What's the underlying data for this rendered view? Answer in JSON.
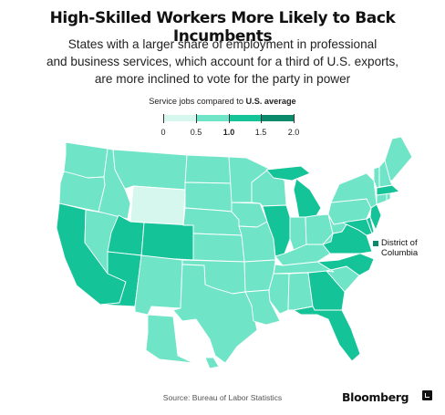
{
  "title": "High-Skilled Workers More Likely to Back Incumbents",
  "subtitle": {
    "line1": "States with a larger share of employment in professional",
    "line2": "and business services, which account for a third of U.S. exports,",
    "line3": "are more inclined to vote for the party in power"
  },
  "legend": {
    "title_prefix": "Service jobs compared to ",
    "title_bold": "U.S. average",
    "ticks": [
      "0",
      "0.5",
      "1.0",
      "1.5",
      "2.0"
    ],
    "bins": [
      {
        "from": 0,
        "to": 0.5,
        "color": "#d6f7ee"
      },
      {
        "from": 0.5,
        "to": 1.0,
        "color": "#6fe4c7"
      },
      {
        "from": 1.0,
        "to": 1.5,
        "color": "#15c398"
      },
      {
        "from": 1.5,
        "to": 2.0,
        "color": "#0a8a6a"
      }
    ]
  },
  "annotation": {
    "dc_line1": "District of",
    "dc_line2": "Columbia"
  },
  "source": "Source: Bureau of Labor Statistics",
  "brand": "Bloomberg",
  "colors": {
    "low": "#d6f7ee",
    "mid": "#6fe4c7",
    "high": "#15c398",
    "very_high": "#0a8a6a",
    "border": "#ffffff"
  },
  "map_data": {
    "low": [
      "WY"
    ],
    "high": [
      "CA",
      "UT",
      "CO",
      "AZ",
      "IL",
      "MI",
      "GA",
      "FL",
      "VA",
      "NC",
      "NJ",
      "DE",
      "MD",
      "MA"
    ],
    "very_high": [
      "DC"
    ],
    "mid": [
      "WA",
      "OR",
      "ID",
      "MT",
      "NV",
      "ND",
      "SD",
      "NE",
      "KS",
      "OK",
      "TX",
      "NM",
      "MN",
      "IA",
      "MO",
      "AR",
      "LA",
      "WI",
      "IN",
      "OH",
      "KY",
      "TN",
      "MS",
      "AL",
      "SC",
      "WV",
      "PA",
      "NY",
      "VT",
      "NH",
      "ME",
      "CT",
      "RI",
      "AK",
      "HI"
    ]
  }
}
